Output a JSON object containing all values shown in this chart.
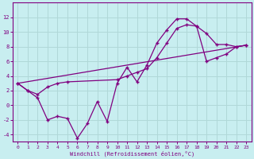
{
  "bg_color": "#c8eef0",
  "line_color": "#800080",
  "grid_color": "#b0d8d8",
  "xlabel": "Windchill (Refroidissement éolien,°C)",
  "xlabel_color": "#800080",
  "tick_color": "#800080",
  "xlim": [
    -0.5,
    23.5
  ],
  "ylim": [
    -5,
    14
  ],
  "yticks": [
    -4,
    -2,
    0,
    2,
    4,
    6,
    8,
    10,
    12
  ],
  "xticks": [
    0,
    1,
    2,
    3,
    4,
    5,
    6,
    7,
    8,
    9,
    10,
    11,
    12,
    13,
    14,
    15,
    16,
    17,
    18,
    19,
    20,
    21,
    22,
    23
  ],
  "series1_x": [
    0,
    1,
    2,
    3,
    4,
    5,
    6,
    7,
    8,
    9,
    10,
    11,
    12,
    13,
    14,
    15,
    16,
    17,
    18,
    19,
    20,
    21,
    22,
    23
  ],
  "series1_y": [
    3,
    2,
    1,
    -2,
    -1.5,
    -1.8,
    -4.5,
    -2.5,
    0.5,
    -2.2,
    3.0,
    5.2,
    3.2,
    5.5,
    8.5,
    10.3,
    11.8,
    11.8,
    10.8,
    9.8,
    8.3,
    8.3,
    8.0,
    8.2
  ],
  "series2_x": [
    0,
    1,
    2,
    3,
    4,
    5,
    10,
    11,
    12,
    13,
    14,
    15,
    16,
    17,
    18,
    19,
    20,
    21,
    22,
    23
  ],
  "series2_y": [
    3,
    2,
    1.5,
    2.5,
    3.0,
    3.2,
    3.5,
    4.0,
    4.5,
    5.0,
    6.5,
    8.5,
    10.5,
    11.0,
    10.8,
    6.0,
    6.5,
    7.0,
    8.0,
    8.2
  ],
  "series3_x": [
    0,
    23
  ],
  "series3_y": [
    3.0,
    8.2
  ],
  "marker": "+"
}
